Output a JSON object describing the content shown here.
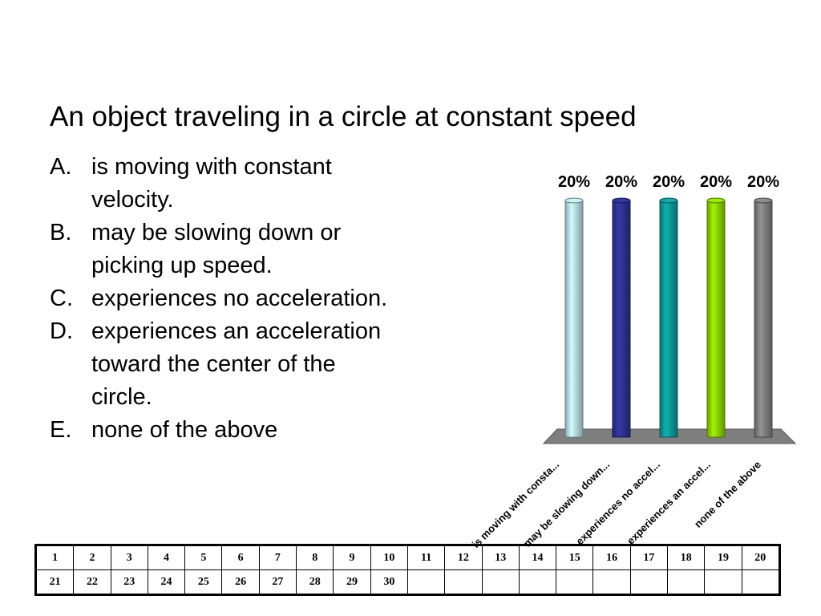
{
  "question": {
    "title": "An object traveling in a circle at constant speed",
    "options": [
      {
        "letter": "A.",
        "text": "is moving with constant velocity."
      },
      {
        "letter": "B.",
        "text": "may be slowing down or picking up speed."
      },
      {
        "letter": "C.",
        "text": "experiences no acceleration."
      },
      {
        "letter": "D.",
        "text": "experiences an acceleration toward the center of the circle."
      },
      {
        "letter": "E.",
        "text": "none of the above"
      }
    ]
  },
  "chart_data": {
    "type": "bar",
    "categories": [
      "is moving with consta...",
      "may be slowing down...",
      "experiences no accel...",
      "experiences an accel...",
      "none of the above"
    ],
    "values": [
      20,
      20,
      20,
      20,
      20
    ],
    "value_labels": [
      "20%",
      "20%",
      "20%",
      "20%",
      "20%"
    ],
    "ylim": [
      0,
      20
    ],
    "colors": [
      "#b7dde4",
      "#2e3192",
      "#0e9a9a",
      "#8fd400",
      "#808080"
    ],
    "floor_color": "#7f7f7f",
    "grid": false,
    "legend": "none"
  },
  "number_grid": {
    "rows": [
      [
        "1",
        "2",
        "3",
        "4",
        "5",
        "6",
        "7",
        "8",
        "9",
        "10",
        "11",
        "12",
        "13",
        "14",
        "15",
        "16",
        "17",
        "18",
        "19",
        "20"
      ],
      [
        "21",
        "22",
        "23",
        "24",
        "25",
        "26",
        "27",
        "28",
        "29",
        "30",
        "",
        "",
        "",
        "",
        "",
        "",
        "",
        "",
        "",
        ""
      ]
    ]
  }
}
